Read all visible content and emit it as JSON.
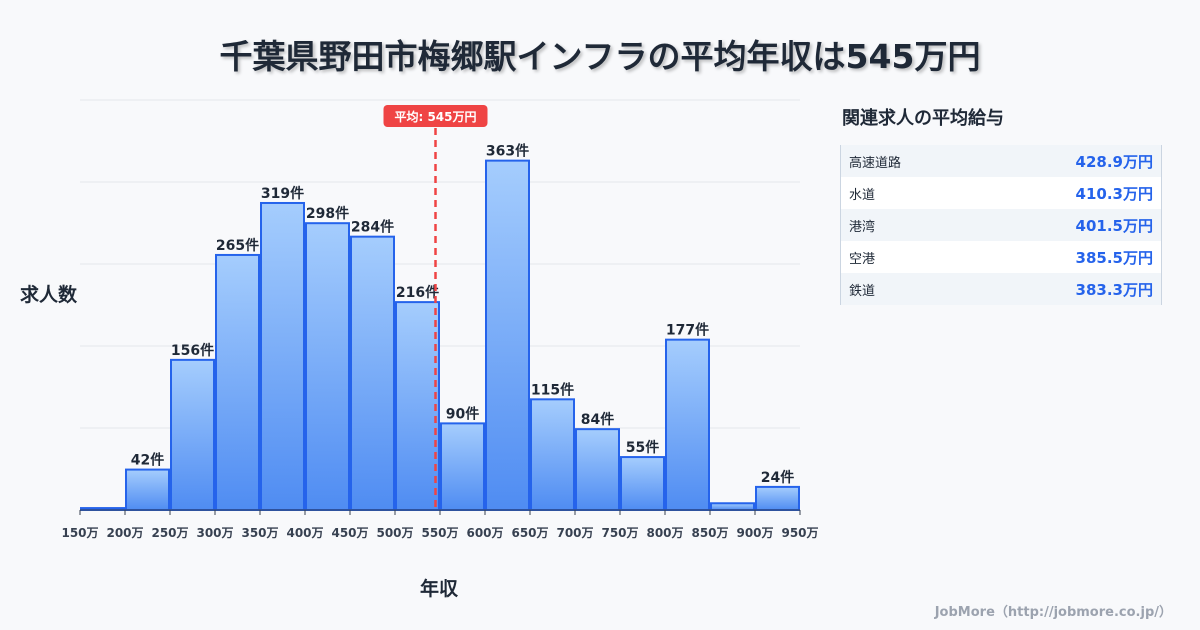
{
  "chart_data": {
    "type": "bar",
    "title": "千葉県野田市梅郷駅インフラの平均年収は545万円",
    "xlabel": "年収",
    "ylabel": "求人数",
    "bin_edges": [
      150,
      200,
      250,
      300,
      350,
      400,
      450,
      500,
      550,
      600,
      650,
      700,
      750,
      800,
      850,
      900,
      950
    ],
    "tick_labels": [
      "150万",
      "200万",
      "250万",
      "300万",
      "350万",
      "400万",
      "450万",
      "500万",
      "550万",
      "600万",
      "650万",
      "700万",
      "750万",
      "800万",
      "850万",
      "900万",
      "950万"
    ],
    "values": [
      2,
      42,
      156,
      265,
      319,
      298,
      284,
      216,
      90,
      363,
      115,
      84,
      55,
      177,
      7,
      24
    ],
    "data_labels": [
      "",
      "42件",
      "156件",
      "265件",
      "319件",
      "298件",
      "284件",
      "216件",
      "90件",
      "363件",
      "115件",
      "84件",
      "55件",
      "177件",
      "",
      "24件"
    ],
    "ylim": [
      0,
      426
    ],
    "grid": true,
    "average": {
      "value": 545,
      "label": "平均: 545万円"
    },
    "colors": {
      "bar_top": "#a5cdfd",
      "bar_bottom": "#4f8cf2",
      "bar_stroke": "#2563eb",
      "average": "#ef4444"
    }
  },
  "sidebar": {
    "title": "関連求人の平均給与",
    "rows": [
      {
        "name": "高速道路",
        "value": "428.9万円"
      },
      {
        "name": "水道",
        "value": "410.3万円"
      },
      {
        "name": "港湾",
        "value": "401.5万円"
      },
      {
        "name": "空港",
        "value": "385.5万円"
      },
      {
        "name": "鉄道",
        "value": "383.3万円"
      }
    ]
  },
  "footer": "JobMore（http://jobmore.co.jp/）"
}
